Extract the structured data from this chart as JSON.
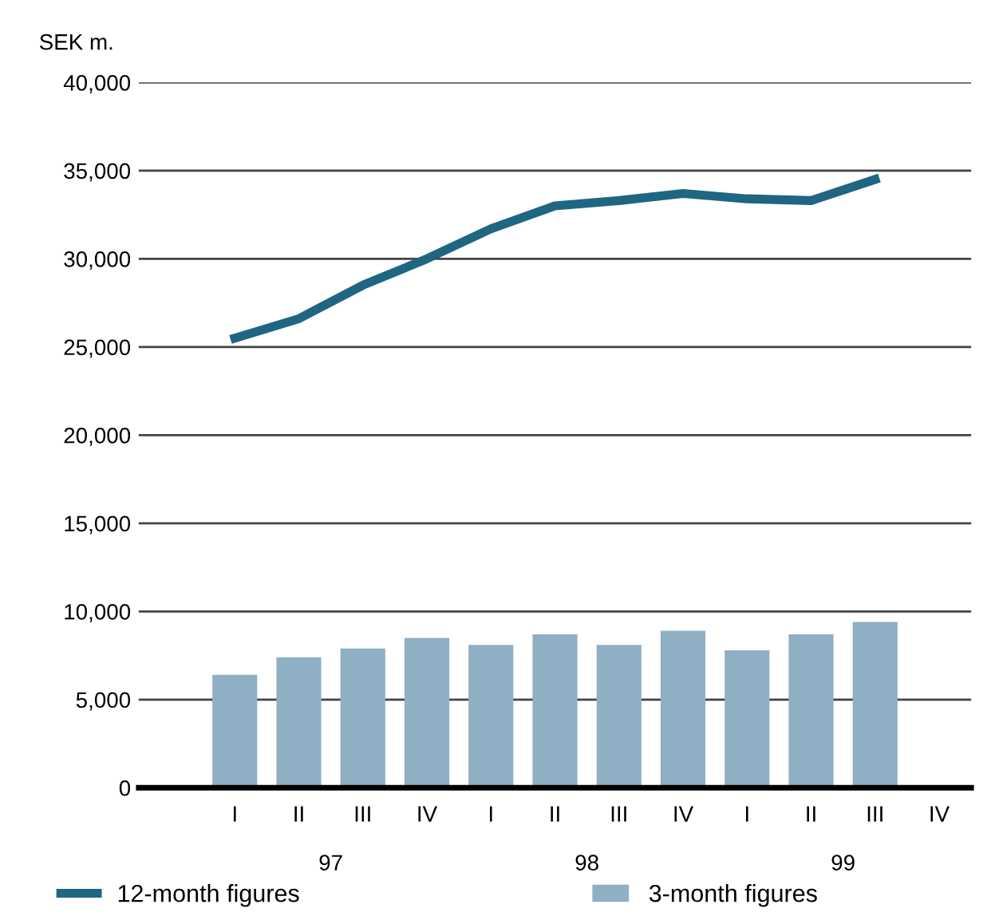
{
  "chart_data": {
    "type": "bar",
    "ylabel": "SEK m.",
    "categories": [
      "I",
      "II",
      "III",
      "IV",
      "I",
      "II",
      "III",
      "IV",
      "I",
      "II",
      "III",
      "IV"
    ],
    "series": [
      {
        "name": "12-month figures",
        "type": "line",
        "color": "#1f6682",
        "values": [
          25500,
          26600,
          28500,
          30000,
          31700,
          33000,
          33300,
          33700,
          33400,
          33300,
          34500,
          null
        ]
      },
      {
        "name": "3-month figures",
        "color": "#8fafc5",
        "values": [
          6400,
          7400,
          7900,
          8500,
          8100,
          8700,
          8100,
          8900,
          7800,
          8700,
          9400,
          null
        ]
      }
    ],
    "annotations": [
      "97",
      "98",
      "99"
    ],
    "ylim": [
      0,
      40000
    ],
    "yticks": [
      {
        "value": 0,
        "label": "0"
      },
      {
        "value": 5000,
        "label": "5,000"
      },
      {
        "value": 10000,
        "label": "10,000"
      },
      {
        "value": 15000,
        "label": "15,000"
      },
      {
        "value": 20000,
        "label": "20,000"
      },
      {
        "value": 25000,
        "label": "25,000"
      },
      {
        "value": 30000,
        "label": "30,000"
      },
      {
        "value": 35000,
        "label": "35,000"
      },
      {
        "value": 40000,
        "label": "40,000"
      }
    ],
    "grid": "y",
    "legend": "bottom",
    "marker": "none",
    "line_style": "solid"
  }
}
